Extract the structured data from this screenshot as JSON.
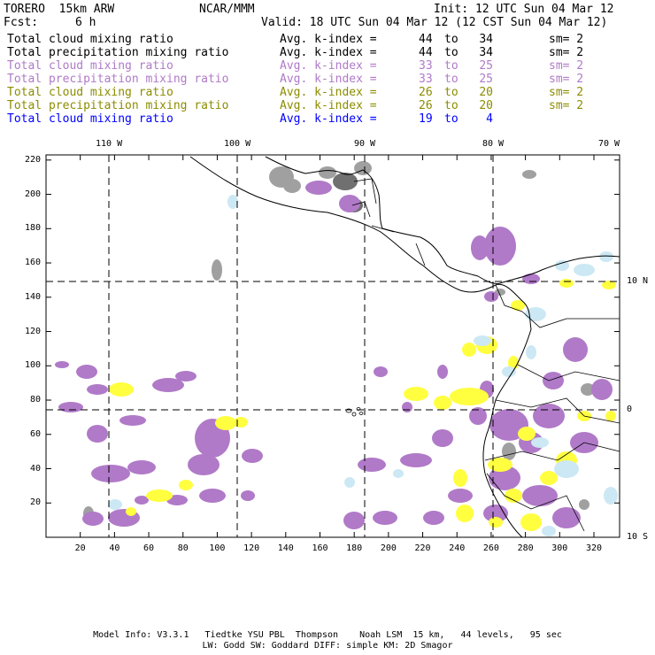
{
  "header": {
    "model": "TORERO  15km ARW",
    "org": "NCAR/MMM",
    "init": "Init: 12 UTC Sun 04 Mar 12",
    "fcst_label": "Fcst:",
    "fcst_value": "6 h",
    "valid": "Valid: 18 UTC Sun 04 Mar 12 (12 CST Sun 04 Mar 12)"
  },
  "legend": [
    {
      "field": "Total cloud mixing ratio",
      "index_label": "Avg. k-index =",
      "from": "44",
      "to_word": "to",
      "to": "34",
      "smooth": "sm= 2",
      "color": "#000000"
    },
    {
      "field": "Total precipitation mixing ratio",
      "index_label": "Avg. k-index =",
      "from": "44",
      "to_word": "to",
      "to": "34",
      "smooth": "sm= 2",
      "color": "#000000"
    },
    {
      "field": "Total cloud mixing ratio",
      "index_label": "Avg. k-index =",
      "from": "33",
      "to_word": "to",
      "to": "25",
      "smooth": "sm= 2",
      "color": "#b07ac8"
    },
    {
      "field": "Total precipitation mixing ratio",
      "index_label": "Avg. k-index =",
      "from": "33",
      "to_word": "to",
      "to": "25",
      "smooth": "sm= 2",
      "color": "#b07ac8"
    },
    {
      "field": "Total cloud mixing ratio",
      "index_label": "Avg. k-index =",
      "from": "26",
      "to_word": "to",
      "to": "20",
      "smooth": "sm= 2",
      "color": "#8c8c00"
    },
    {
      "field": "Total precipitation mixing ratio",
      "index_label": "Avg. k-index =",
      "from": "26",
      "to_word": "to",
      "to": "20",
      "smooth": "sm= 2",
      "color": "#8c8c00"
    },
    {
      "field": "Total cloud mixing ratio",
      "index_label": "Avg. k-index =",
      "from": "19",
      "to_word": "to",
      "to": "4",
      "smooth": "",
      "color": "#0000ff"
    }
  ],
  "map": {
    "lon_labels": [
      "110 W",
      "100 W",
      "90 W",
      "80 W",
      "70 W"
    ],
    "lat_labels": [
      "10 N",
      "0",
      "10 S"
    ],
    "x_ticks": [
      20,
      40,
      60,
      80,
      100,
      120,
      140,
      160,
      180,
      200,
      220,
      240,
      260,
      280,
      300,
      320
    ],
    "y_ticks": [
      20,
      40,
      60,
      80,
      100,
      120,
      140,
      160,
      180,
      200,
      220
    ],
    "colors": {
      "gray": "#a0a0a0",
      "darkgray": "#707070",
      "purple": "#b07ac8",
      "yellow": "#ffff40",
      "lightblue": "#cce8f4",
      "coast": "#000000"
    }
  },
  "footer": {
    "line1": "Model Info: V3.3.1   Tiedtke YSU PBL  Thompson    Noah LSM  15 km,   44 levels,   95 sec",
    "line2": "LW: Godd SW: Goddard DIFF: simple KM: 2D Smagor"
  }
}
